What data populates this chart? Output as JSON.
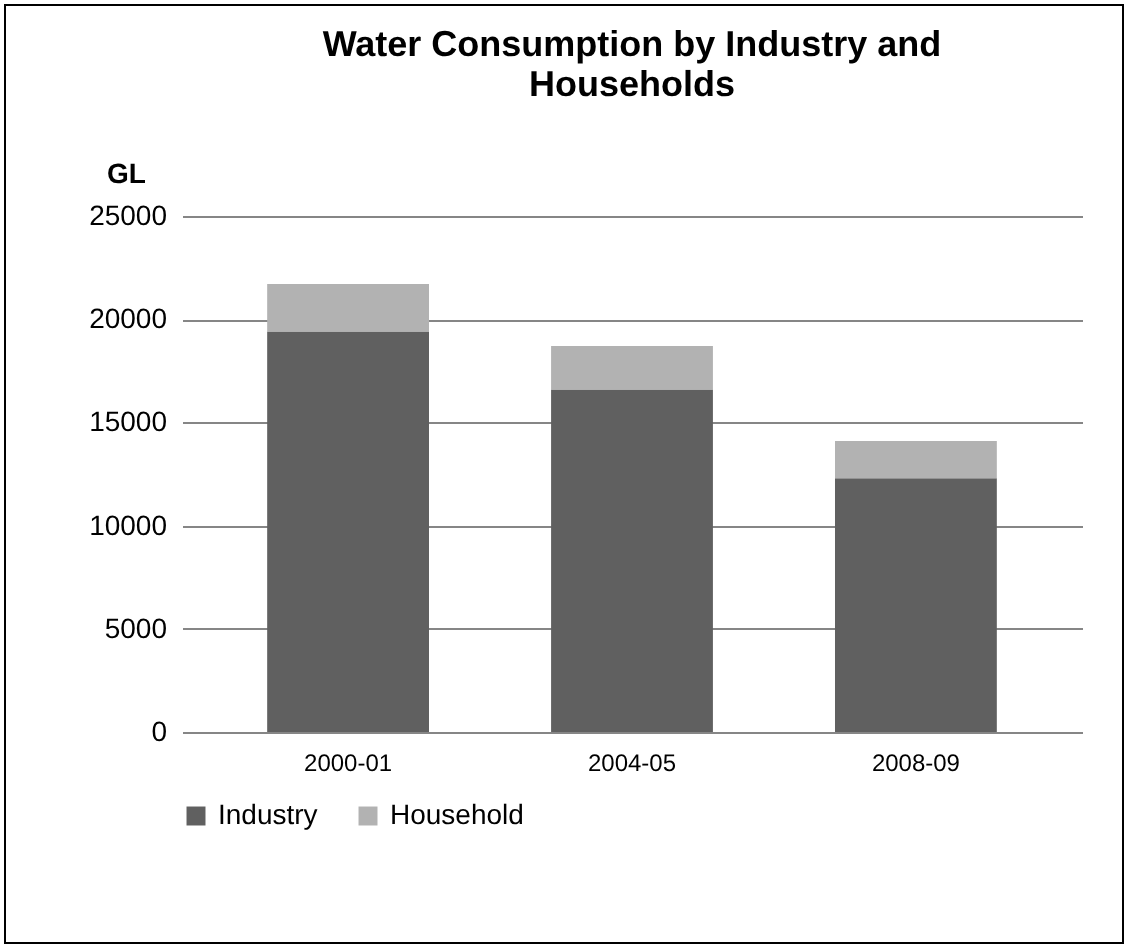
{
  "chart_data": {
    "type": "bar",
    "title": "Water Consumption by Industry and Households",
    "ylabel": "GL",
    "categories": [
      "2000-01",
      "2004-05",
      "2008-09"
    ],
    "series": [
      {
        "name": "Industry",
        "color": "#606060",
        "values": [
          19400,
          16600,
          12300
        ]
      },
      {
        "name": "Household",
        "color": "#b2b2b2",
        "values": [
          2300,
          2100,
          1800
        ]
      }
    ],
    "stacked": true,
    "ylim": [
      0,
      25000
    ],
    "yticks": [
      0,
      5000,
      10000,
      15000,
      20000,
      25000
    ],
    "grid": "y",
    "legend": "bottom"
  }
}
